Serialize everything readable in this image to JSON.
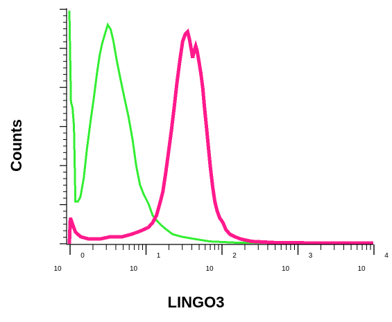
{
  "chart_data": {
    "type": "line",
    "title": "",
    "xlabel": "LINGO3",
    "ylabel": "Counts",
    "xscale": "log",
    "xlim": [
      1,
      10000
    ],
    "ylim": [
      0,
      100
    ],
    "grid": false,
    "x_tick_labels": [
      {
        "base": "10",
        "exp": "0",
        "value": 1
      },
      {
        "base": "10",
        "exp": "1",
        "value": 10
      },
      {
        "base": "10",
        "exp": "2",
        "value": 100
      },
      {
        "base": "10",
        "exp": "3",
        "value": 1000
      },
      {
        "base": "10",
        "exp": "4",
        "value": 10000
      }
    ],
    "series": [
      {
        "color": "#33ee33",
        "points": [
          [
            1.0,
            99
          ],
          [
            1.05,
            60
          ],
          [
            1.1,
            58
          ],
          [
            1.15,
            50
          ],
          [
            1.2,
            18
          ],
          [
            1.3,
            18
          ],
          [
            1.4,
            20
          ],
          [
            1.55,
            28
          ],
          [
            1.7,
            40
          ],
          [
            1.9,
            52
          ],
          [
            2.1,
            62
          ],
          [
            2.3,
            72
          ],
          [
            2.5,
            80
          ],
          [
            2.7,
            85
          ],
          [
            3.0,
            90
          ],
          [
            3.2,
            93
          ],
          [
            3.5,
            91
          ],
          [
            3.8,
            86
          ],
          [
            4.2,
            78
          ],
          [
            4.7,
            70
          ],
          [
            5.3,
            62
          ],
          [
            6.0,
            54
          ],
          [
            6.8,
            44
          ],
          [
            7.6,
            33
          ],
          [
            8.5,
            25
          ],
          [
            9.5,
            21
          ],
          [
            11,
            17
          ],
          [
            12.5,
            12
          ],
          [
            14,
            10
          ],
          [
            16,
            8
          ],
          [
            19,
            6
          ],
          [
            23,
            4
          ],
          [
            30,
            3
          ],
          [
            45,
            2
          ],
          [
            70,
            1
          ],
          [
            150,
            0.5
          ],
          [
            1000,
            0.3
          ],
          [
            10000,
            0.2
          ]
        ]
      },
      {
        "color": "#ff1a8c",
        "points": [
          [
            1.0,
            0
          ],
          [
            1.03,
            11
          ],
          [
            1.08,
            9
          ],
          [
            1.2,
            5
          ],
          [
            1.4,
            3
          ],
          [
            1.8,
            2
          ],
          [
            2.5,
            2
          ],
          [
            3.5,
            3
          ],
          [
            5.0,
            3
          ],
          [
            6.5,
            4
          ],
          [
            8.0,
            5
          ],
          [
            9.5,
            6
          ],
          [
            11,
            7
          ],
          [
            12.5,
            9
          ],
          [
            14,
            12
          ],
          [
            15.5,
            17
          ],
          [
            17,
            22
          ],
          [
            18.5,
            30
          ],
          [
            20,
            38
          ],
          [
            22,
            48
          ],
          [
            24,
            58
          ],
          [
            26,
            68
          ],
          [
            28.5,
            78
          ],
          [
            31,
            86
          ],
          [
            33.5,
            89
          ],
          [
            36,
            90
          ],
          [
            38,
            87
          ],
          [
            40,
            83
          ],
          [
            42,
            79
          ],
          [
            44,
            82
          ],
          [
            46,
            84
          ],
          [
            48,
            82
          ],
          [
            51,
            77
          ],
          [
            54,
            72
          ],
          [
            57,
            66
          ],
          [
            60,
            58
          ],
          [
            64,
            49
          ],
          [
            68,
            40
          ],
          [
            72,
            32
          ],
          [
            77,
            24
          ],
          [
            82,
            18
          ],
          [
            88,
            14
          ],
          [
            95,
            11
          ],
          [
            105,
            9
          ],
          [
            115,
            6
          ],
          [
            130,
            4
          ],
          [
            150,
            3
          ],
          [
            180,
            2
          ],
          [
            250,
            1
          ],
          [
            500,
            0.5
          ],
          [
            2000,
            0.3
          ],
          [
            10000,
            0.3
          ]
        ]
      }
    ]
  }
}
